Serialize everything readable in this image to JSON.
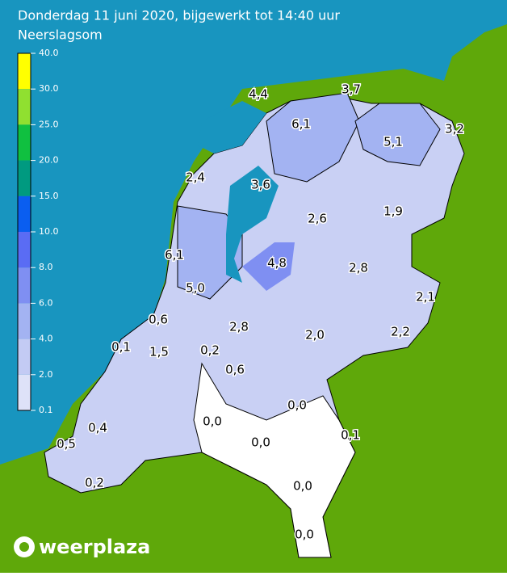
{
  "header": {
    "title": "Donderdag 11 juni 2020, bijgewerkt tot 14:40 uur",
    "subtitle": "Neerslagsom"
  },
  "legend": {
    "ticks": [
      "40.0",
      "30.0",
      "25.0",
      "20.0",
      "15.0",
      "10.0",
      "8.0",
      "6.0",
      "4.0",
      "2.0",
      "0.1"
    ],
    "colors": [
      "#ffff00",
      "#90e030",
      "#10c040",
      "#009a80",
      "#0a5ef0",
      "#5a6cf4",
      "#7f8ff2",
      "#a3b3f2",
      "#c3cbf4",
      "#dee2f8"
    ]
  },
  "map": {
    "labels": [
      "4,4",
      "3,7",
      "6,1",
      "5,1",
      "3,2",
      "2,4",
      "3,6",
      "2,6",
      "1,9",
      "6,1",
      "4,8",
      "2,8",
      "5,0",
      "2,1",
      "0,6",
      "2,8",
      "2,0",
      "2,2",
      "0,1",
      "1,5",
      "0,2",
      "0,6",
      "0,0",
      "0,0",
      "0,1",
      "0,4",
      "0,0",
      "0,5",
      "0,0",
      "0,2",
      "0,0"
    ]
  },
  "logo": {
    "text": "weerplaza"
  }
}
